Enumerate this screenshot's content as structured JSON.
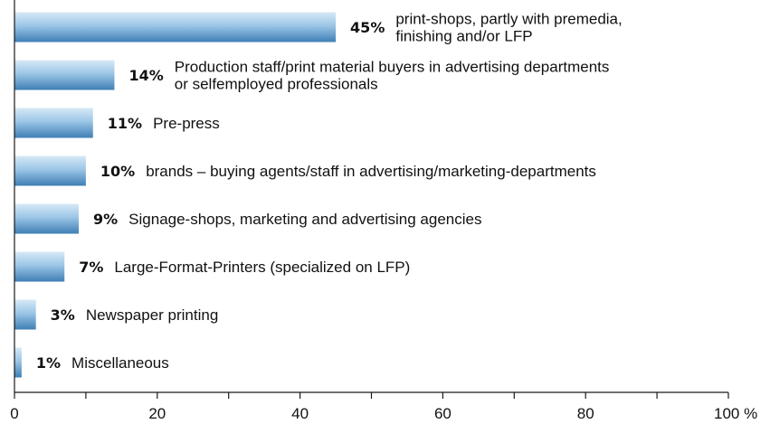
{
  "chart_data": {
    "type": "bar",
    "orientation": "horizontal",
    "categories": [
      [
        "print-shops, partly with premedia,",
        "finishing and/or LFP"
      ],
      [
        "Production staff/print material buyers in advertising departments",
        "or selfemployed professionals"
      ],
      [
        "Pre-press"
      ],
      [
        "brands – buying agents/staff in advertising/marketing-departments"
      ],
      [
        "Signage-shops, marketing and advertising agencies"
      ],
      [
        "Large-Format-Printers (specialized on LFP)"
      ],
      [
        "Newspaper printing"
      ],
      [
        "Miscellaneous"
      ]
    ],
    "values": [
      45,
      14,
      11,
      10,
      9,
      7,
      3,
      1
    ],
    "value_labels": [
      "45%",
      "14%",
      "11%",
      "10%",
      "9%",
      "7%",
      "3%",
      "1%"
    ],
    "xlim": [
      0,
      100
    ],
    "xticks": [
      0,
      20,
      40,
      60,
      80,
      100
    ],
    "xtick_labels": [
      "0",
      "20",
      "40",
      "60",
      "80",
      "100 %"
    ],
    "bar_color_light": "#d6e9f7",
    "bar_color_dark": "#3f7fb5",
    "axis_color": "#1a1a1a",
    "grid": false
  }
}
